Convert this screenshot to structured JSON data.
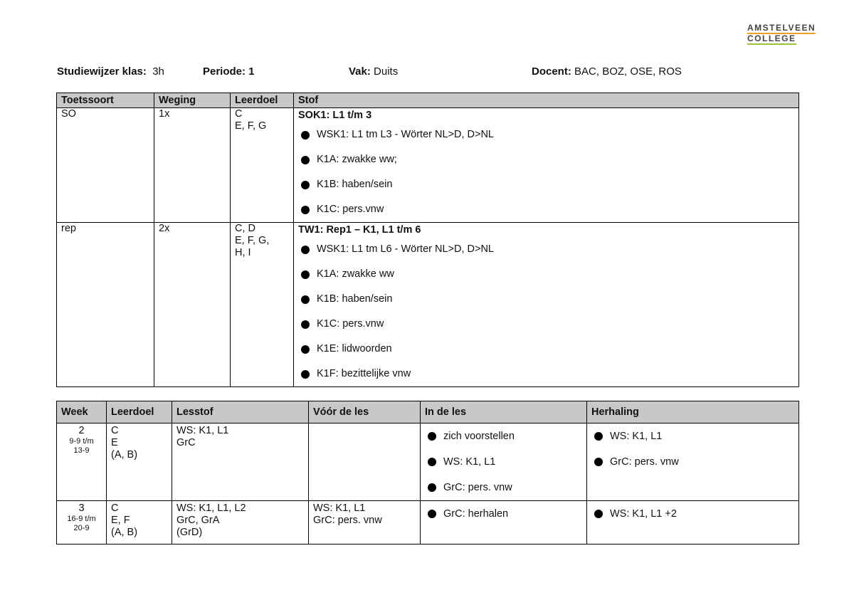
{
  "logo": {
    "line1": "AMSTELVEEN",
    "line2": "COLLEGE"
  },
  "header": {
    "klas_label": "Studiewijzer klas:",
    "klas": "3h",
    "periode": "Periode: 1",
    "vak_label": "Vak:",
    "vak": "Duits",
    "docent_label": "Docent:",
    "docent": "BAC, BOZ, OSE, ROS"
  },
  "toetsen": {
    "columns": [
      "Toetssoort",
      "Weging",
      "Leerdoel",
      "Stof"
    ],
    "rows": [
      {
        "soort": "SO",
        "weging": "1x",
        "leerdoel": [
          "C",
          "E, F, G"
        ],
        "stof_title": "SOK1: L1 t/m 3",
        "stof": [
          "WSK1: L1 tm L3 - Wörter NL>D, D>NL",
          "K1A: zwakke ww;",
          "K1B: haben/sein",
          "K1C: pers.vnw"
        ]
      },
      {
        "soort": "rep",
        "weging": "2x",
        "leerdoel": [
          "C, D",
          "E, F, G,",
          "H, I"
        ],
        "stof_title": "TW1: Rep1 – K1, L1 t/m 6",
        "stof": [
          "WSK1: L1 tm L6 - Wörter NL>D, D>NL",
          "K1A: zwakke ww",
          "K1B: haben/sein",
          "K1C: pers.vnw",
          "K1E: lidwoorden",
          "K1F: bezittelijke vnw"
        ]
      }
    ]
  },
  "weken": {
    "columns": [
      "Week",
      "Leerdoel",
      "Lesstof",
      "Vóór de les",
      "In de les",
      "Herhaling"
    ],
    "rows": [
      {
        "week": "2",
        "dates": [
          "9-9 t/m",
          "13-9"
        ],
        "leerdoel": [
          "C",
          "E",
          "(A, B)"
        ],
        "lesstof": [
          "WS: K1, L1",
          "GrC"
        ],
        "voor": [],
        "in": [
          "zich voorstellen",
          "WS: K1, L1",
          "GrC: pers. vnw"
        ],
        "herhaling": [
          "WS: K1, L1",
          "GrC: pers. vnw"
        ]
      },
      {
        "week": "3",
        "dates": [
          "16-9 t/m",
          "20-9"
        ],
        "leerdoel": [
          "C",
          "E, F",
          "(A, B)"
        ],
        "lesstof": [
          "WS: K1, L1, L2",
          "GrC, GrA",
          "(GrD)"
        ],
        "voor": [
          "WS: K1, L1",
          "GrC: pers. vnw"
        ],
        "in": [
          "GrC: herhalen"
        ],
        "herhaling": [
          "WS: K1, L1 +2"
        ]
      }
    ]
  }
}
